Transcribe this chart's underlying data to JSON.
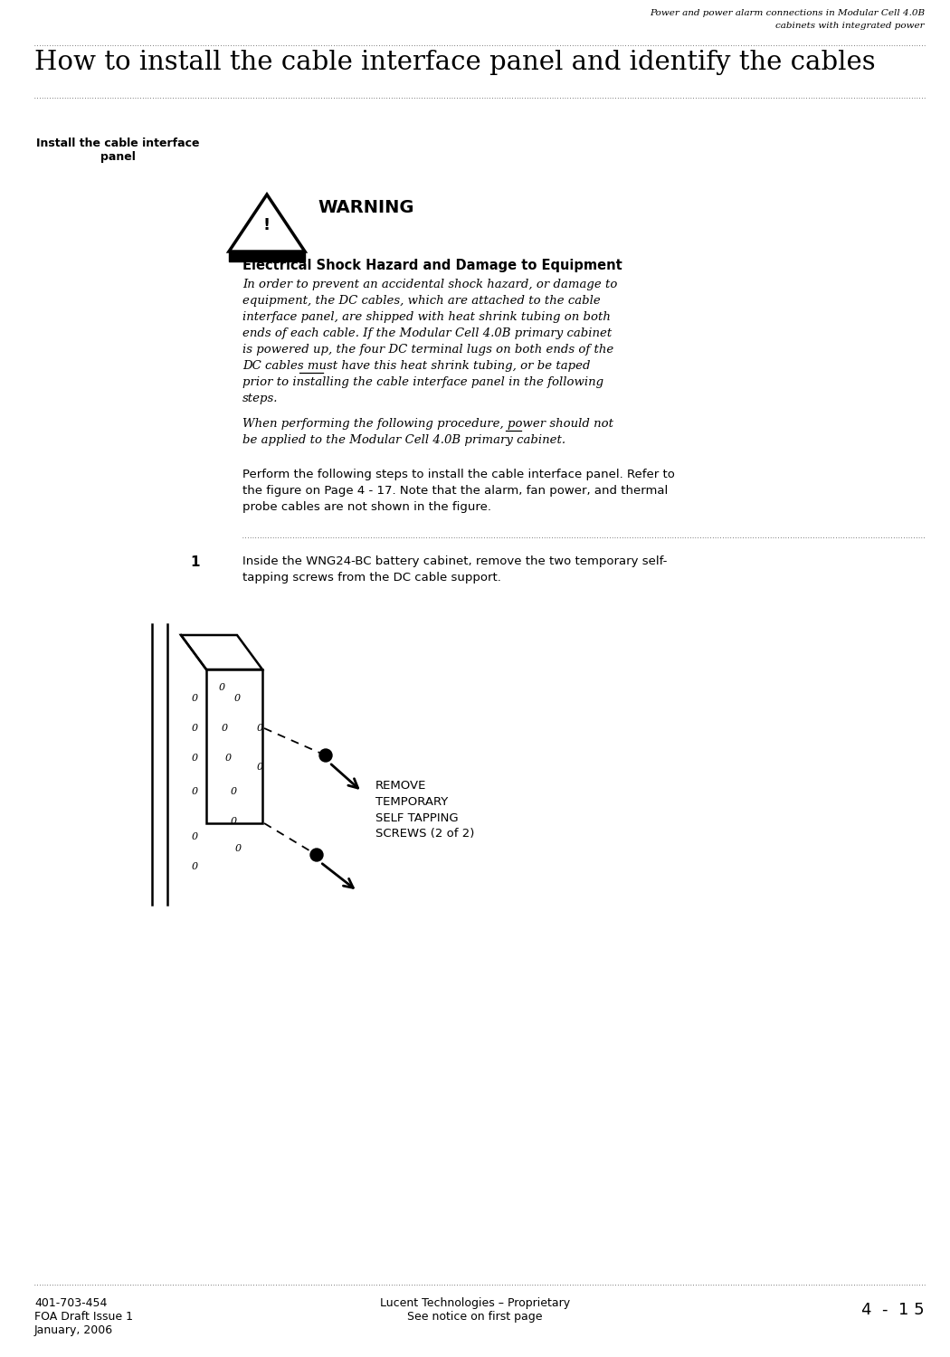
{
  "header_line1": "Power and power alarm connections in Modular Cell 4.0B",
  "header_line2": "cabinets with integrated power",
  "title": "How to install the cable interface panel and identify the cables",
  "sidebar_label_line1": "Install the cable interface",
  "sidebar_label_line2": "panel",
  "warning_word": "WARNING",
  "warning_subtitle": "Electrical Shock Hazard and Damage to Equipment",
  "warning_body1_lines": [
    "In order to prevent an accidental shock hazard, or damage to",
    "equipment, the DC cables, which are attached to the cable",
    "interface panel, are shipped with heat shrink tubing on both",
    "ends of each cable. If the Modular Cell 4.0B primary cabinet",
    "is powered up, the four DC terminal lugs on both ends of the",
    "DC cables must have this heat shrink tubing, or be taped",
    "prior to installing the cable interface panel in the following",
    "steps."
  ],
  "warning_body2_lines": [
    "When performing the following procedure, power should not",
    "be applied to the Modular Cell 4.0B primary cabinet."
  ],
  "para1_lines": [
    "Perform the following steps to install the cable interface panel. Refer to",
    "the figure on Page 4 - 17. Note that the alarm, fan power, and thermal",
    "probe cables are not shown in the figure."
  ],
  "step1_num": "1",
  "step1_lines": [
    "Inside the WNG24-BC battery cabinet, remove the two temporary self-",
    "tapping screws from the DC cable support."
  ],
  "diagram_label": "REMOVE\nTEMPORARY\nSELF TAPPING\nSCREWS (2 of 2)",
  "footer_left1": "401-703-454",
  "footer_left2": "FOA Draft Issue 1",
  "footer_left3": "January, 2006",
  "footer_center1": "Lucent Technologies – Proprietary",
  "footer_center2": "See notice on first page",
  "footer_right": "4  -  1 5",
  "bg_color": "#ffffff",
  "text_color": "#000000"
}
